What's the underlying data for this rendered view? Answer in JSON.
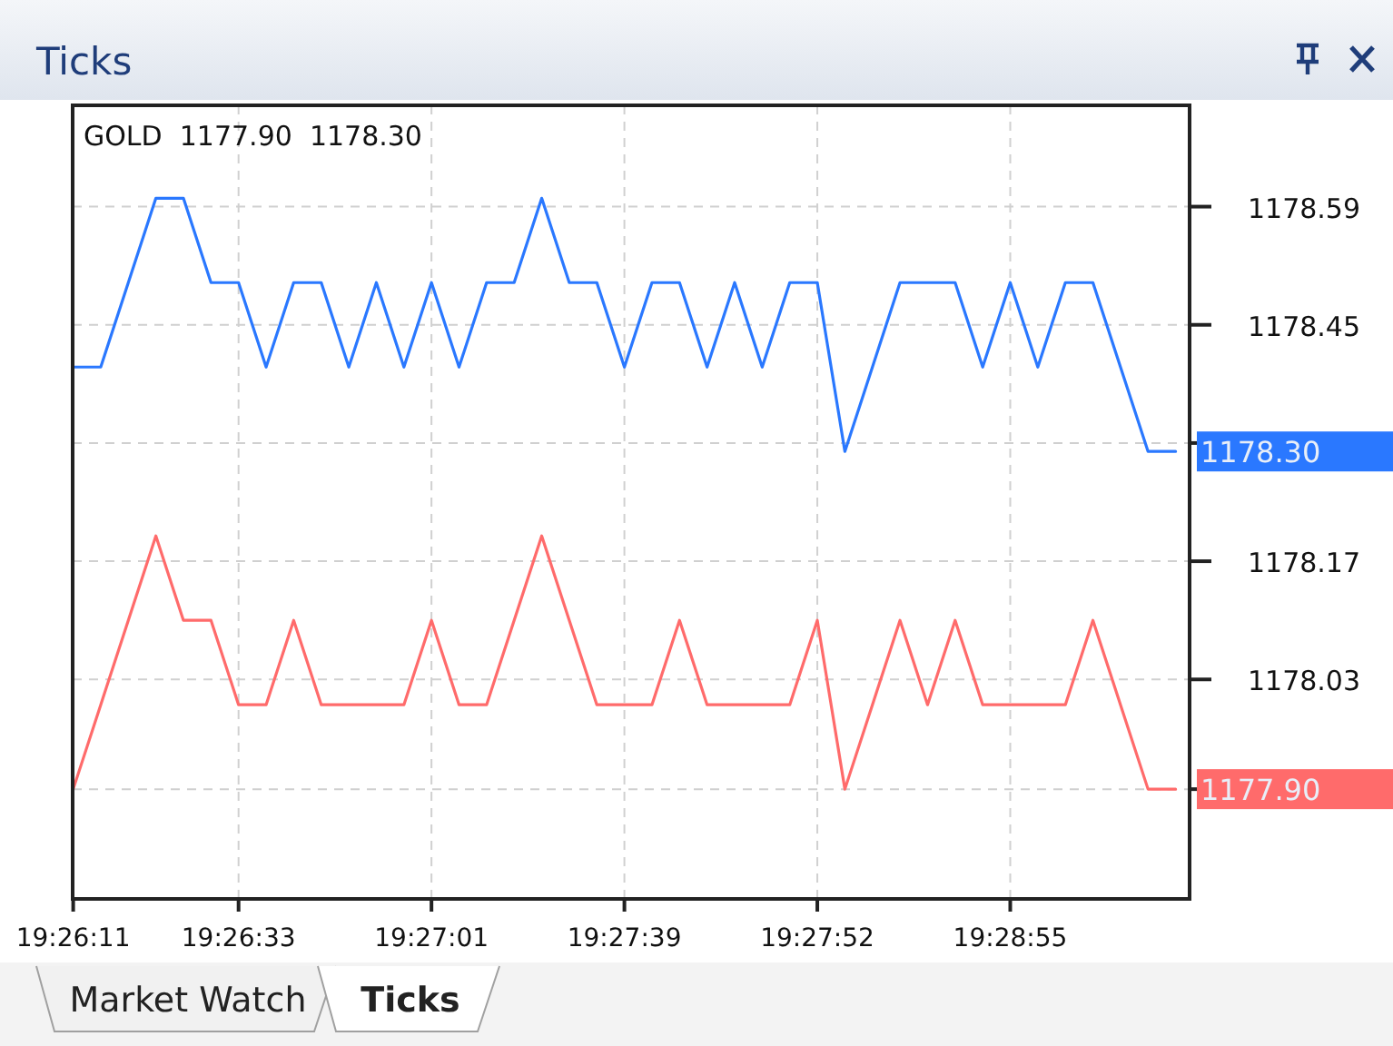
{
  "chart_data": {
    "type": "line",
    "title": "Ticks",
    "subtitle": "GOLD  1177.90  1178.30",
    "categories": [
      "19:26:11",
      null,
      null,
      null,
      null,
      null,
      "19:26:33",
      null,
      null,
      null,
      null,
      null,
      null,
      "19:27:01",
      null,
      null,
      null,
      null,
      null,
      null,
      "19:27:39",
      null,
      null,
      null,
      null,
      null,
      null,
      "19:27:52",
      null,
      null,
      null,
      null,
      null,
      null,
      "19:28:55",
      null,
      null,
      null,
      null,
      null,
      null
    ],
    "ylim": [
      1177.77,
      1178.71
    ],
    "yticks": [
      1178.59,
      1178.45,
      {
        "value": 1178.31,
        "label": null
      },
      1178.17,
      1178.03,
      {
        "value": 1177.9,
        "label": null
      }
    ],
    "series": [
      {
        "color": "#2a78ff",
        "values": [
          1178.4,
          1178.4,
          1178.5,
          1178.6,
          1178.6,
          1178.5,
          1178.5,
          1178.4,
          1178.5,
          1178.5,
          1178.4,
          1178.5,
          1178.4,
          1178.5,
          1178.4,
          1178.5,
          1178.5,
          1178.6,
          1178.5,
          1178.5,
          1178.4,
          1178.5,
          1178.5,
          1178.4,
          1178.5,
          1178.4,
          1178.5,
          1178.5,
          1178.3,
          1178.4,
          1178.5,
          1178.5,
          1178.5,
          1178.4,
          1178.5,
          1178.4,
          1178.5,
          1178.5,
          1178.4,
          1178.3,
          1178.3
        ]
      },
      {
        "color": "#ff6b6b",
        "values": [
          1177.9,
          1178.0,
          1178.1,
          1178.2,
          1178.1,
          1178.1,
          1178.0,
          1178.0,
          1178.1,
          1178.0,
          1178.0,
          1178.0,
          1178.0,
          1178.1,
          1178.0,
          1178.0,
          1178.1,
          1178.2,
          1178.1,
          1178.0,
          1178.0,
          1178.0,
          1178.1,
          1178.0,
          1178.0,
          1178.0,
          1178.0,
          1178.1,
          1177.9,
          1178.0,
          1178.1,
          1178.0,
          1178.1,
          1178.0,
          1178.0,
          1178.0,
          1178.0,
          1178.1,
          1178.0,
          1177.9,
          1177.9
        ]
      }
    ],
    "grid": true,
    "line_style": "solid",
    "marker": "none",
    "annotations": [
      "1178.30",
      "1177.90",
      "Market Watch",
      "Ticks"
    ]
  }
}
